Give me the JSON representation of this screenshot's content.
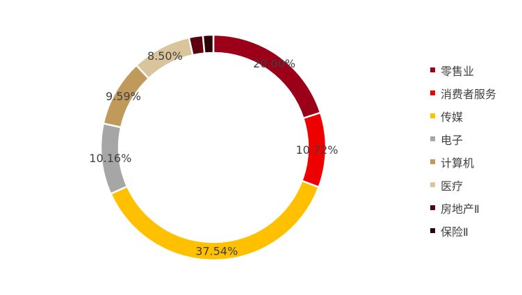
{
  "chart_data": {
    "type": "pie",
    "title": "",
    "series": [
      {
        "name": "零售业",
        "value": 20.0,
        "label": "20.00%",
        "color": "#9b0018"
      },
      {
        "name": "消费者服务",
        "value": 10.72,
        "label": "10.72%",
        "color": "#ee0000"
      },
      {
        "name": "传媒",
        "value": 37.54,
        "label": "37.54%",
        "color": "#ffc000"
      },
      {
        "name": "电子",
        "value": 10.16,
        "label": "10.16%",
        "color": "#a6a6a6"
      },
      {
        "name": "计算机",
        "value": 9.59,
        "label": "9.59%",
        "color": "#c09a5b"
      },
      {
        "name": "医疗",
        "value": 8.5,
        "label": "8.50%",
        "color": "#dac49c"
      },
      {
        "name": "房地产Ⅱ",
        "value": 2.0,
        "label": "",
        "color": "#5c0010"
      },
      {
        "name": "保险Ⅱ",
        "value": 1.49,
        "label": "",
        "color": "#2e0008"
      }
    ],
    "legend_position": "right",
    "donut": true
  }
}
